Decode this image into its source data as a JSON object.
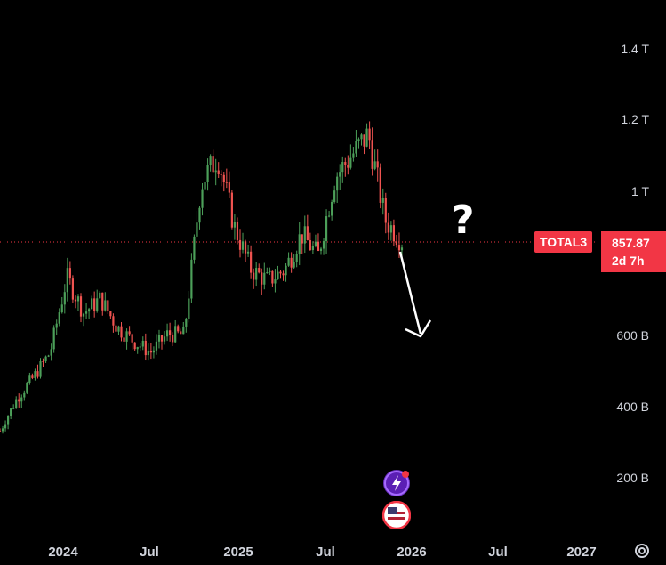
{
  "symbol": "TOTAL3",
  "price_label": "857.87",
  "countdown": "2d 7h",
  "annotation": "?",
  "price_axis": [
    "1.4 T",
    "1.2 T",
    "1 T",
    "600 B",
    "400 B",
    "200 B"
  ],
  "time_axis": [
    "2024",
    "Jul",
    "2025",
    "Jul",
    "2026",
    "Jul",
    "2027"
  ],
  "colors": {
    "up": "#4c9f59",
    "down": "#ef5350",
    "tag": "#f23645",
    "background": "#000000"
  },
  "icons": [
    "lightning-icon",
    "us-flag-icon",
    "settings-icon"
  ],
  "chart_data": {
    "type": "candlestick",
    "title": "",
    "ylim": [
      0,
      1.5
    ],
    "unit": "T",
    "current_value": 0.858,
    "x": [
      "2023-11",
      "2023-12",
      "2024-01",
      "2024-02",
      "2024-03",
      "2024-04",
      "2024-05",
      "2024-06",
      "2024-07",
      "2024-08",
      "2024-09",
      "2024-10",
      "2024-11",
      "2024-12",
      "2025-01",
      "2025-02",
      "2025-03",
      "2025-04",
      "2025-05",
      "2025-06",
      "2025-07",
      "2025-08",
      "2025-09",
      "2025-10",
      "2025-11"
    ],
    "close": [
      0.33,
      0.42,
      0.48,
      0.55,
      0.76,
      0.66,
      0.7,
      0.62,
      0.58,
      0.55,
      0.6,
      0.6,
      1.02,
      1.1,
      0.9,
      0.78,
      0.75,
      0.78,
      0.88,
      0.82,
      1.04,
      1.1,
      1.16,
      0.92,
      0.86
    ]
  }
}
